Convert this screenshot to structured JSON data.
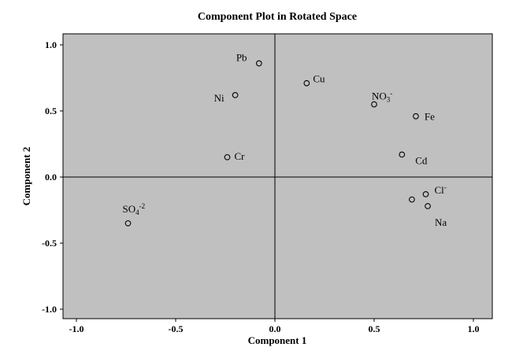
{
  "chart_data": {
    "type": "scatter",
    "title": "Component Plot in Rotated Space",
    "xlabel": "Component 1",
    "ylabel": "Component 2",
    "xlim": [
      -1.0,
      1.0
    ],
    "ylim": [
      -1.0,
      1.0
    ],
    "x_ticks": [
      -1.0,
      -0.5,
      0.0,
      0.5,
      1.0
    ],
    "y_ticks": [
      -1.0,
      -0.5,
      0.0,
      0.5,
      1.0
    ],
    "x_tick_labels": [
      "-1.0",
      "-0.5",
      "0.0",
      "0.5",
      "1.0"
    ],
    "y_tick_labels": [
      "-1.0",
      "-0.5",
      "0.0",
      "0.5",
      "1.0"
    ],
    "grid": false,
    "reference_lines": {
      "x": 0.0,
      "y": 0.0
    },
    "background_color": "#c0c0c0",
    "marker": "open-circle",
    "points": [
      {
        "label": "Pb",
        "x": -0.08,
        "y": 0.86
      },
      {
        "label": "Cu",
        "x": 0.16,
        "y": 0.71
      },
      {
        "label": "Ni",
        "x": -0.2,
        "y": 0.62
      },
      {
        "label": "NO3-",
        "label_main": "NO",
        "label_sub": "3",
        "label_sup": "-",
        "x": 0.5,
        "y": 0.55
      },
      {
        "label": "Fe",
        "x": 0.71,
        "y": 0.46
      },
      {
        "label": "Cr",
        "x": -0.24,
        "y": 0.15
      },
      {
        "label": "Cd",
        "x": 0.64,
        "y": 0.17
      },
      {
        "label": "Cl-",
        "label_main": "Cl",
        "label_sup": "-",
        "x": 0.76,
        "y": -0.13
      },
      {
        "label": "Na",
        "x": 0.77,
        "y": -0.22
      },
      {
        "label": "",
        "x": 0.69,
        "y": -0.17
      },
      {
        "label": "SO4-2",
        "label_main": "SO",
        "label_sub": "4",
        "label_sup": "-2",
        "x": -0.74,
        "y": -0.35
      }
    ]
  }
}
